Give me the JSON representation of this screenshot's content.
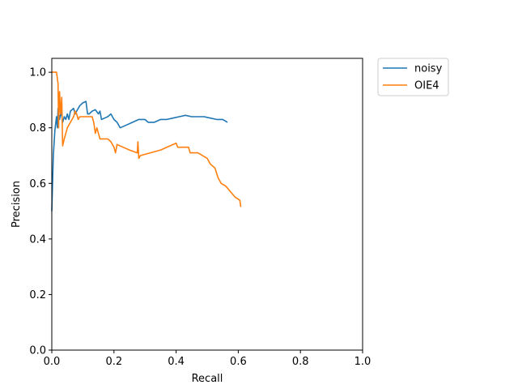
{
  "chart_data": {
    "type": "line",
    "title": "",
    "xlabel": "Recall",
    "ylabel": "Precision",
    "xlim": [
      0.0,
      1.0
    ],
    "ylim": [
      0.0,
      1.05
    ],
    "xticks": [
      "0.0",
      "0.2",
      "0.4",
      "0.6",
      "0.8",
      "1.0"
    ],
    "yticks": [
      "0.0",
      "0.2",
      "0.4",
      "0.6",
      "0.8",
      "1.0"
    ],
    "grid": false,
    "legend_position": "outside-top-right",
    "series": [
      {
        "name": "noisy",
        "color": "#1f77b4",
        "points": [
          [
            0.0,
            0.5
          ],
          [
            0.005,
            0.7
          ],
          [
            0.01,
            0.79
          ],
          [
            0.015,
            0.84
          ],
          [
            0.018,
            0.8
          ],
          [
            0.02,
            0.87
          ],
          [
            0.025,
            0.83
          ],
          [
            0.03,
            0.86
          ],
          [
            0.035,
            0.82
          ],
          [
            0.04,
            0.84
          ],
          [
            0.045,
            0.83
          ],
          [
            0.05,
            0.85
          ],
          [
            0.055,
            0.83
          ],
          [
            0.06,
            0.86
          ],
          [
            0.07,
            0.87
          ],
          [
            0.075,
            0.85
          ],
          [
            0.08,
            0.86
          ],
          [
            0.09,
            0.88
          ],
          [
            0.1,
            0.89
          ],
          [
            0.11,
            0.895
          ],
          [
            0.115,
            0.85
          ],
          [
            0.12,
            0.85
          ],
          [
            0.13,
            0.86
          ],
          [
            0.14,
            0.865
          ],
          [
            0.15,
            0.85
          ],
          [
            0.155,
            0.86
          ],
          [
            0.16,
            0.83
          ],
          [
            0.17,
            0.835
          ],
          [
            0.18,
            0.84
          ],
          [
            0.19,
            0.85
          ],
          [
            0.2,
            0.83
          ],
          [
            0.21,
            0.82
          ],
          [
            0.22,
            0.8
          ],
          [
            0.24,
            0.81
          ],
          [
            0.26,
            0.82
          ],
          [
            0.28,
            0.83
          ],
          [
            0.3,
            0.83
          ],
          [
            0.31,
            0.82
          ],
          [
            0.33,
            0.82
          ],
          [
            0.35,
            0.83
          ],
          [
            0.37,
            0.83
          ],
          [
            0.39,
            0.835
          ],
          [
            0.41,
            0.84
          ],
          [
            0.43,
            0.845
          ],
          [
            0.45,
            0.84
          ],
          [
            0.47,
            0.84
          ],
          [
            0.49,
            0.84
          ],
          [
            0.51,
            0.835
          ],
          [
            0.53,
            0.83
          ],
          [
            0.55,
            0.83
          ],
          [
            0.565,
            0.82
          ]
        ]
      },
      {
        "name": "OIE4",
        "color": "#ff7f0e",
        "points": [
          [
            0.0,
            1.0
          ],
          [
            0.015,
            1.0
          ],
          [
            0.02,
            0.96
          ],
          [
            0.022,
            0.8
          ],
          [
            0.025,
            0.93
          ],
          [
            0.028,
            0.85
          ],
          [
            0.03,
            0.87
          ],
          [
            0.032,
            0.91
          ],
          [
            0.035,
            0.735
          ],
          [
            0.04,
            0.76
          ],
          [
            0.05,
            0.8
          ],
          [
            0.06,
            0.82
          ],
          [
            0.07,
            0.84
          ],
          [
            0.075,
            0.86
          ],
          [
            0.08,
            0.85
          ],
          [
            0.085,
            0.83
          ],
          [
            0.09,
            0.84
          ],
          [
            0.1,
            0.84
          ],
          [
            0.12,
            0.84
          ],
          [
            0.13,
            0.84
          ],
          [
            0.135,
            0.82
          ],
          [
            0.14,
            0.78
          ],
          [
            0.145,
            0.8
          ],
          [
            0.15,
            0.78
          ],
          [
            0.155,
            0.76
          ],
          [
            0.16,
            0.76
          ],
          [
            0.18,
            0.76
          ],
          [
            0.19,
            0.75
          ],
          [
            0.2,
            0.73
          ],
          [
            0.205,
            0.71
          ],
          [
            0.21,
            0.74
          ],
          [
            0.25,
            0.72
          ],
          [
            0.275,
            0.71
          ],
          [
            0.277,
            0.75
          ],
          [
            0.28,
            0.69
          ],
          [
            0.285,
            0.7
          ],
          [
            0.35,
            0.72
          ],
          [
            0.4,
            0.745
          ],
          [
            0.405,
            0.73
          ],
          [
            0.44,
            0.73
          ],
          [
            0.445,
            0.71
          ],
          [
            0.47,
            0.71
          ],
          [
            0.5,
            0.69
          ],
          [
            0.51,
            0.67
          ],
          [
            0.525,
            0.655
          ],
          [
            0.535,
            0.62
          ],
          [
            0.545,
            0.6
          ],
          [
            0.56,
            0.59
          ],
          [
            0.575,
            0.57
          ],
          [
            0.59,
            0.55
          ],
          [
            0.605,
            0.54
          ],
          [
            0.608,
            0.515
          ]
        ]
      }
    ]
  }
}
